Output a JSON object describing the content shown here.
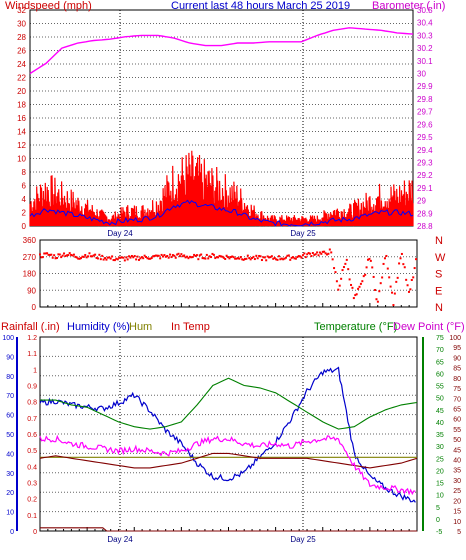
{
  "title": "Current last 48 hours March 25 2019",
  "colors": {
    "frame": "#000000",
    "grid": "#000000",
    "windspeed": "#ff0000",
    "windspeed_avg": "#0000ff",
    "barometer": "#ff00ff",
    "direction": "#ff0000",
    "humidity": "#0000cc",
    "hum_in": "#808000",
    "temp_in": "#800000",
    "temperature": "#008000",
    "dewpoint": "#ff00ff",
    "rain": "#800000",
    "label_red": "#cc0000",
    "label_blue": "#0000cc",
    "label_olive": "#808000",
    "label_green": "#008000",
    "label_magenta": "#cc00cc",
    "label_maroon": "#800000"
  },
  "chart_data": [
    {
      "type": "line",
      "panel": "wind-barometer",
      "left_label": "Windspeed (mph)",
      "right_label": "Barometer (.in)",
      "left_ticks": [
        "32",
        "30",
        "28",
        "26",
        "24",
        "22",
        "20",
        "18",
        "16",
        "14",
        "12",
        "10",
        "8",
        "6",
        "4",
        "2",
        "0"
      ],
      "right_ticks": [
        "30.5",
        "30.4",
        "30.3",
        "30.2",
        "30.1",
        "30",
        "29.9",
        "29.8",
        "29.7",
        "29.6",
        "29.5",
        "29.4",
        "29.3",
        "29.2",
        "29.1",
        "29",
        "28.9",
        "28.8"
      ],
      "x_labels": [
        "Day 24",
        "Day 25"
      ],
      "ylim_left": [
        0,
        32
      ],
      "ylim_right": [
        28.8,
        30.5
      ],
      "x_range_hours": [
        0,
        48
      ],
      "grid": true,
      "series": [
        {
          "name": "Windspeed",
          "role": "gust",
          "x": [
            0,
            2,
            4,
            6,
            8,
            10,
            12,
            14,
            16,
            18,
            20,
            22,
            24,
            26,
            28,
            30,
            32,
            34,
            36,
            38,
            40,
            42,
            44,
            46,
            48
          ],
          "y": [
            3,
            5,
            4,
            3,
            2,
            1,
            2,
            2,
            3,
            6,
            7,
            6,
            5,
            4,
            2,
            1,
            1,
            1,
            1,
            2,
            2,
            3,
            4,
            4,
            5
          ]
        },
        {
          "name": "Windspeed",
          "role": "avg",
          "x": [
            0,
            2,
            4,
            6,
            8,
            10,
            12,
            14,
            16,
            18,
            20,
            22,
            24,
            26,
            28,
            30,
            32,
            34,
            36,
            38,
            40,
            42,
            44,
            46,
            48
          ],
          "y": [
            1.5,
            2.5,
            2,
            1.5,
            1,
            0.5,
            0.8,
            1,
            1.5,
            3,
            3.5,
            3,
            2.5,
            2,
            1,
            0.5,
            0.3,
            0.3,
            0.5,
            0.8,
            1,
            1.5,
            2,
            2,
            1.8
          ]
        },
        {
          "name": "Barometer",
          "x": [
            0,
            2,
            4,
            6,
            8,
            10,
            12,
            14,
            16,
            18,
            20,
            22,
            24,
            26,
            28,
            30,
            32,
            34,
            36,
            38,
            40,
            42,
            44,
            46,
            48
          ],
          "y": [
            30.0,
            30.08,
            30.2,
            30.24,
            30.26,
            30.27,
            30.29,
            30.3,
            30.3,
            30.28,
            30.24,
            30.22,
            30.22,
            30.24,
            30.24,
            30.25,
            30.25,
            30.25,
            30.3,
            30.34,
            30.36,
            30.35,
            30.34,
            30.32,
            30.31
          ]
        }
      ]
    },
    {
      "type": "scatter",
      "panel": "wind-direction",
      "left_ticks": [
        "360",
        "270",
        "180",
        "90",
        "0"
      ],
      "right_ticks": [
        "N",
        "W",
        "S",
        "E",
        "N"
      ],
      "x_labels": [],
      "ylim": [
        0,
        360
      ],
      "grid": true,
      "series": [
        {
          "name": "Direction",
          "x": [
            0,
            1,
            2,
            3,
            4,
            5,
            6,
            7,
            8,
            9,
            10,
            11,
            12,
            13,
            14,
            15,
            16,
            17,
            18,
            19,
            20,
            21,
            22,
            23,
            24,
            25,
            26,
            27,
            28,
            29,
            30,
            31,
            32,
            33,
            34,
            35,
            36,
            37,
            38,
            39,
            40,
            41,
            42,
            43,
            44,
            45,
            46,
            47,
            48
          ],
          "y": [
            275,
            282,
            270,
            285,
            278,
            268,
            280,
            272,
            266,
            262,
            258,
            261,
            263,
            266,
            268,
            270,
            272,
            274,
            276,
            270,
            268,
            272,
            274,
            271,
            268,
            266,
            265,
            264,
            262,
            262,
            263,
            264,
            266,
            270,
            280,
            290,
            285,
            300,
            100,
            260,
            40,
            120,
            280,
            20,
            290,
            30,
            300,
            60,
            270
          ]
        }
      ]
    },
    {
      "type": "line",
      "panel": "temperature-humidity",
      "labels": {
        "rain": "Rainfall (.in)",
        "humidity": "Humidity (%)",
        "hum_in": "Hum",
        "temp_in": "In Temp",
        "temperature": "Temperature (°F)",
        "dewpoint": "Dew Point (°F)"
      },
      "left_ticks": [
        "100",
        "90",
        "80",
        "70",
        "60",
        "50",
        "40",
        "30",
        "20",
        "10",
        "0"
      ],
      "rain_ticks": [
        "1.2",
        "1.1",
        "1",
        "0.9",
        "0.8",
        "0.7",
        "0.6",
        "0.5",
        "0.4",
        "0.3",
        "0.2",
        "0.1",
        "0"
      ],
      "temp_ticks": [
        "75",
        "70",
        "65",
        "60",
        "55",
        "50",
        "45",
        "40",
        "35",
        "30",
        "25",
        "20",
        "15",
        "10",
        "5",
        "0",
        "-5"
      ],
      "dew_ticks": [
        "100",
        "95",
        "90",
        "85",
        "80",
        "75",
        "70",
        "65",
        "60",
        "55",
        "50",
        "45",
        "40",
        "35",
        "30",
        "25",
        "20",
        "15",
        "10",
        "5"
      ],
      "x_labels": [
        "Day 24",
        "Day 25"
      ],
      "ylim_humidity": [
        0,
        100
      ],
      "ylim_rain": [
        0,
        1.2
      ],
      "ylim_temp": [
        -5,
        75
      ],
      "grid": true,
      "series": [
        {
          "name": "Humidity",
          "axis": "humidity",
          "x": [
            0,
            2,
            4,
            6,
            8,
            10,
            12,
            14,
            16,
            18,
            20,
            22,
            24,
            26,
            28,
            30,
            32,
            34,
            36,
            38,
            40,
            42,
            44,
            46,
            48
          ],
          "y": [
            66,
            67,
            65,
            64,
            63,
            66,
            70,
            62,
            52,
            45,
            35,
            28,
            27,
            30,
            38,
            46,
            58,
            72,
            82,
            83,
            40,
            28,
            22,
            18,
            15
          ]
        },
        {
          "name": "Hum",
          "axis": "humidity",
          "x": [
            0,
            8,
            9,
            20,
            22,
            35,
            36,
            40,
            41,
            48
          ],
          "y": [
            38,
            38,
            38,
            38,
            38,
            38,
            38,
            38,
            38,
            38
          ]
        },
        {
          "name": "In Temp",
          "axis": "temp",
          "x": [
            0,
            2,
            4,
            6,
            8,
            10,
            12,
            14,
            16,
            18,
            20,
            22,
            24,
            26,
            28,
            30,
            32,
            34,
            36,
            38,
            40,
            42,
            44,
            46,
            48
          ],
          "y": [
            25,
            26,
            25,
            24,
            23,
            22,
            21,
            21,
            22,
            23,
            25,
            27,
            27,
            26,
            25,
            25,
            25,
            25,
            24,
            23,
            22,
            21,
            22,
            23,
            25
          ]
        },
        {
          "name": "Temperature",
          "axis": "temp",
          "x": [
            0,
            2,
            4,
            6,
            8,
            10,
            12,
            14,
            16,
            18,
            20,
            22,
            24,
            26,
            28,
            30,
            32,
            34,
            36,
            38,
            40,
            42,
            44,
            46,
            48
          ],
          "y": [
            49,
            49,
            47,
            46,
            43,
            40,
            38,
            37,
            38,
            40,
            47,
            55,
            58,
            55,
            54,
            52,
            48,
            44,
            40,
            37,
            38,
            42,
            45,
            47,
            48
          ]
        },
        {
          "name": "Dew Point",
          "axis": "temp",
          "x": [
            0,
            2,
            4,
            6,
            8,
            10,
            12,
            14,
            16,
            18,
            20,
            22,
            24,
            26,
            28,
            30,
            32,
            34,
            36,
            38,
            40,
            42,
            44,
            46,
            48
          ],
          "y": [
            33,
            33,
            31,
            30,
            29,
            28,
            29,
            28,
            27,
            28,
            31,
            33,
            33,
            31,
            30,
            31,
            30,
            32,
            33,
            33,
            22,
            14,
            13,
            12,
            11
          ]
        },
        {
          "name": "Rainfall",
          "axis": "rain",
          "x": [
            0,
            8,
            8.2,
            48
          ],
          "y": [
            0.02,
            0.02,
            0.0,
            0.0
          ]
        }
      ]
    }
  ]
}
